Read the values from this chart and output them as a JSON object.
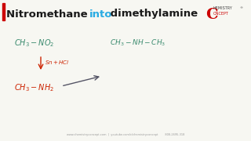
{
  "title_part1": "Nitromethane ",
  "title_part2": "into",
  "title_part3": " dimethylamine",
  "title_color1": "#1a1a1a",
  "title_color2": "#29abe2",
  "title_color3": "#1a1a1a",
  "title_bar_color": "#cc0000",
  "bg_color": "#f7f7f2",
  "chem_color_green": "#3a8a6e",
  "chem_color_red": "#cc2200",
  "arrow_color": "#555566",
  "logo_C_color": "#cc0000",
  "logo_text_color": "#444444",
  "footer_color": "#999999",
  "footer_text": "www.chemistryconcept.com  |  youtube.com/c/chemistryconcept        808-2695-318"
}
